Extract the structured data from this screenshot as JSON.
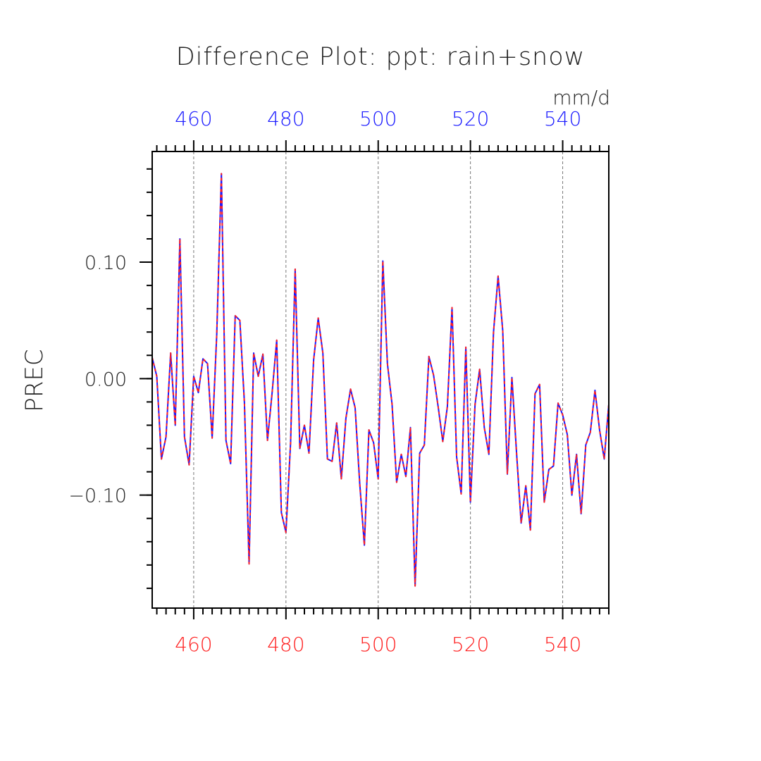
{
  "chart_data": {
    "type": "line",
    "title": "Difference Plot: ppt: rain+snow",
    "units": "mm/d",
    "ylabel": "PREC",
    "xlabel": "",
    "xlim": [
      451,
      550
    ],
    "ylim": [
      -0.197,
      0.195
    ],
    "x_ticks": [
      460,
      480,
      500,
      520,
      540
    ],
    "x_tick_labels_bottom": [
      "460",
      "480",
      "500",
      "520",
      "540"
    ],
    "x_tick_labels_top": [
      "460",
      "480",
      "500",
      "520",
      "540"
    ],
    "y_ticks": [
      -0.1,
      0.0,
      0.1
    ],
    "y_tick_labels": [
      "−0.10",
      "0.00",
      "0.10"
    ],
    "grid": "vertical dashed at major x ticks",
    "colors": {
      "series_blue": "#1a1aff",
      "series_red": "#ff2020",
      "bottom_ticks": "#ff2020",
      "top_ticks": "#1a1aff",
      "axes": "#000000"
    },
    "x": [
      451,
      452,
      453,
      454,
      455,
      456,
      457,
      458,
      459,
      460,
      461,
      462,
      463,
      464,
      465,
      466,
      467,
      468,
      469,
      470,
      471,
      472,
      473,
      474,
      475,
      476,
      477,
      478,
      479,
      480,
      481,
      482,
      483,
      484,
      485,
      486,
      487,
      488,
      489,
      490,
      491,
      492,
      493,
      494,
      495,
      496,
      497,
      498,
      499,
      500,
      501,
      502,
      503,
      504,
      505,
      506,
      507,
      508,
      509,
      510,
      511,
      512,
      513,
      514,
      515,
      516,
      517,
      518,
      519,
      520,
      521,
      522,
      523,
      524,
      525,
      526,
      527,
      528,
      529,
      530,
      531,
      532,
      533,
      534,
      535,
      536,
      537,
      538,
      539,
      540,
      541,
      542,
      543,
      544,
      545,
      546,
      547,
      548,
      549,
      550
    ],
    "series": [
      {
        "name": "",
        "color": "#1a1aff",
        "line_style": "solid",
        "values": [
          0.018,
          0.002,
          -0.069,
          -0.05,
          0.022,
          -0.04,
          0.12,
          -0.05,
          -0.074,
          0.002,
          -0.012,
          0.017,
          0.013,
          -0.051,
          0.038,
          0.176,
          -0.053,
          -0.073,
          0.054,
          0.05,
          -0.021,
          -0.159,
          0.022,
          0.002,
          0.021,
          -0.053,
          -0.012,
          0.033,
          -0.115,
          -0.132,
          -0.055,
          0.094,
          -0.06,
          -0.04,
          -0.064,
          0.016,
          0.052,
          0.022,
          -0.069,
          -0.071,
          -0.038,
          -0.086,
          -0.034,
          -0.009,
          -0.025,
          -0.09,
          -0.143,
          -0.044,
          -0.055,
          -0.086,
          0.101,
          0.013,
          -0.022,
          -0.089,
          -0.065,
          -0.084,
          -0.042,
          -0.178,
          -0.064,
          -0.057,
          0.019,
          0.003,
          -0.024,
          -0.054,
          -0.024,
          0.061,
          -0.067,
          -0.099,
          0.027,
          -0.106,
          -0.022,
          0.008,
          -0.042,
          -0.065,
          0.04,
          0.088,
          0.041,
          -0.082,
          0.001,
          -0.064,
          -0.124,
          -0.092,
          -0.13,
          -0.013,
          -0.005,
          -0.106,
          -0.078,
          -0.075,
          -0.021,
          -0.031,
          -0.048,
          -0.1,
          -0.065,
          -0.116,
          -0.057,
          -0.046,
          -0.01,
          -0.044,
          -0.069,
          -0.022
        ]
      },
      {
        "name": "",
        "color": "#ff2020",
        "line_style": "dashed",
        "values": [
          0.018,
          0.002,
          -0.069,
          -0.05,
          0.022,
          -0.04,
          0.12,
          -0.05,
          -0.074,
          0.002,
          -0.012,
          0.017,
          0.013,
          -0.051,
          0.038,
          0.176,
          -0.053,
          -0.073,
          0.054,
          0.05,
          -0.021,
          -0.159,
          0.022,
          0.002,
          0.021,
          -0.053,
          -0.012,
          0.033,
          -0.115,
          -0.132,
          -0.055,
          0.094,
          -0.06,
          -0.04,
          -0.064,
          0.016,
          0.052,
          0.022,
          -0.069,
          -0.071,
          -0.038,
          -0.086,
          -0.034,
          -0.009,
          -0.025,
          -0.09,
          -0.143,
          -0.044,
          -0.055,
          -0.086,
          0.101,
          0.013,
          -0.022,
          -0.089,
          -0.065,
          -0.084,
          -0.042,
          -0.178,
          -0.064,
          -0.057,
          0.019,
          0.003,
          -0.024,
          -0.054,
          -0.024,
          0.061,
          -0.067,
          -0.099,
          0.027,
          -0.106,
          -0.022,
          0.008,
          -0.042,
          -0.065,
          0.04,
          0.088,
          0.041,
          -0.082,
          0.001,
          -0.064,
          -0.124,
          -0.092,
          -0.13,
          -0.013,
          -0.005,
          -0.106,
          -0.078,
          -0.075,
          -0.021,
          -0.031,
          -0.048,
          -0.1,
          -0.065,
          -0.116,
          -0.057,
          -0.046,
          -0.01,
          -0.044,
          -0.069,
          -0.022
        ]
      }
    ]
  }
}
